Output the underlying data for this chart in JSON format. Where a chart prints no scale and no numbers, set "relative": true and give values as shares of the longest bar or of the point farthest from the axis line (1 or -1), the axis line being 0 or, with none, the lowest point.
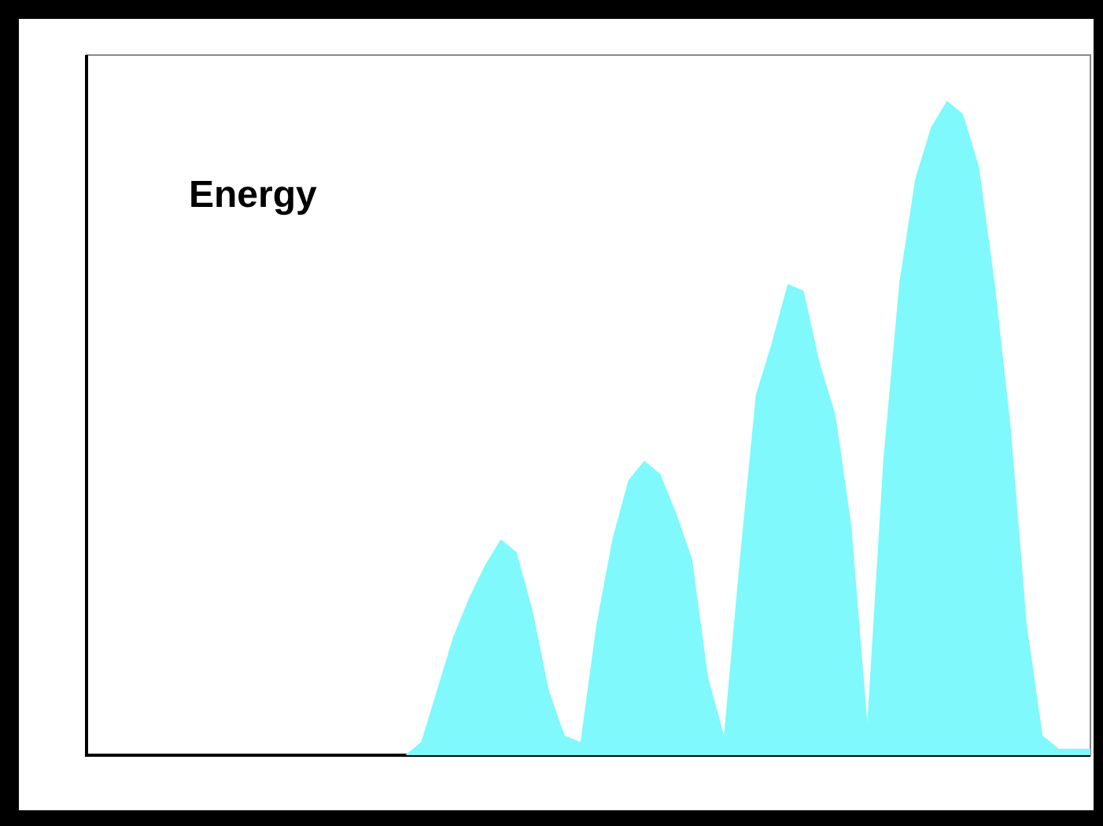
{
  "chart_data": {
    "type": "area",
    "relative": true,
    "annotations": [
      "Energy"
    ],
    "color": "#7ff9fb",
    "categories": [
      null,
      null,
      null,
      null,
      null,
      null,
      null,
      null,
      null,
      null,
      null,
      null,
      null,
      null,
      null,
      null,
      null,
      null,
      null,
      null,
      null,
      null,
      null,
      null,
      null,
      null,
      null,
      null,
      null,
      null,
      null,
      null,
      null,
      null,
      null,
      null,
      null,
      null,
      null,
      null,
      null,
      null,
      null,
      null,
      null,
      null,
      null,
      null,
      null,
      null,
      null,
      null,
      null,
      null,
      null,
      null,
      null,
      null,
      null,
      null,
      null,
      null,
      null,
      null
    ],
    "values": [
      0,
      0,
      0,
      0,
      0,
      0,
      0,
      0,
      0,
      0,
      0,
      0,
      0,
      0,
      0,
      0,
      0,
      0,
      0,
      0,
      0,
      0.02,
      0.1,
      0.18,
      0.24,
      0.29,
      0.33,
      0.31,
      0.22,
      0.1,
      0.03,
      0.02,
      0.2,
      0.33,
      0.42,
      0.45,
      0.43,
      0.37,
      0.3,
      0.12,
      0.03,
      0.3,
      0.55,
      0.63,
      0.72,
      0.71,
      0.6,
      0.52,
      0.35,
      0.05,
      0.45,
      0.72,
      0.88,
      0.96,
      1,
      0.98,
      0.9,
      0.72,
      0.5,
      0.2,
      0.03,
      0.01,
      0.01,
      0.01
    ]
  }
}
